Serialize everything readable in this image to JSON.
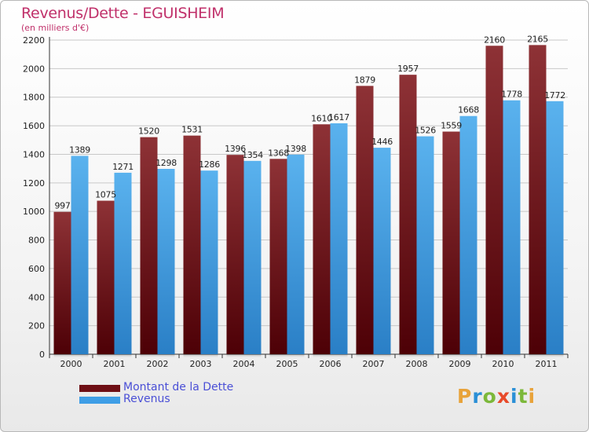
{
  "header": {
    "title": "Revenus/Dette - EGUISHEIM",
    "subtitle": "(en milliers d'€)"
  },
  "colors": {
    "dette": "#6e0f15",
    "revenus": "#3f9ee6",
    "title": "#c0306a",
    "legend_text": "#4a4fd6"
  },
  "legend": {
    "items": [
      {
        "label": "Montant de la Dette",
        "color": "#6e0f15"
      },
      {
        "label": "Revenus",
        "color": "#3f9ee6"
      }
    ],
    "placement": "bottom-left"
  },
  "brand": {
    "letters": [
      "P",
      "r",
      "o",
      "x",
      "i",
      "t",
      "i"
    ],
    "letter_colors": [
      "#e8a33a",
      "#2a8fd6",
      "#7cb83a",
      "#e84a2a",
      "#2a8fd6",
      "#7cb83a",
      "#e8a33a"
    ]
  },
  "chart_data": {
    "type": "bar",
    "title": "Revenus/Dette - EGUISHEIM",
    "subtitle": "(en milliers d'€)",
    "categories": [
      "2000",
      "2001",
      "2002",
      "2003",
      "2004",
      "2005",
      "2006",
      "2007",
      "2008",
      "2009",
      "2010",
      "2011"
    ],
    "series": [
      {
        "name": "Montant de la Dette",
        "values": [
          997,
          1075,
          1520,
          1531,
          1396,
          1368,
          1610,
          1879,
          1957,
          1559,
          2160,
          2165
        ]
      },
      {
        "name": "Revenus",
        "values": [
          1389,
          1271,
          1298,
          1286,
          1354,
          1398,
          1617,
          1446,
          1526,
          1668,
          1778,
          1772
        ]
      }
    ],
    "ylim": [
      0,
      2200
    ],
    "yticks": [
      0,
      200,
      400,
      600,
      800,
      1000,
      1200,
      1400,
      1600,
      1800,
      2000,
      2200
    ],
    "grid": true,
    "xlabel": "",
    "ylabel": ""
  }
}
